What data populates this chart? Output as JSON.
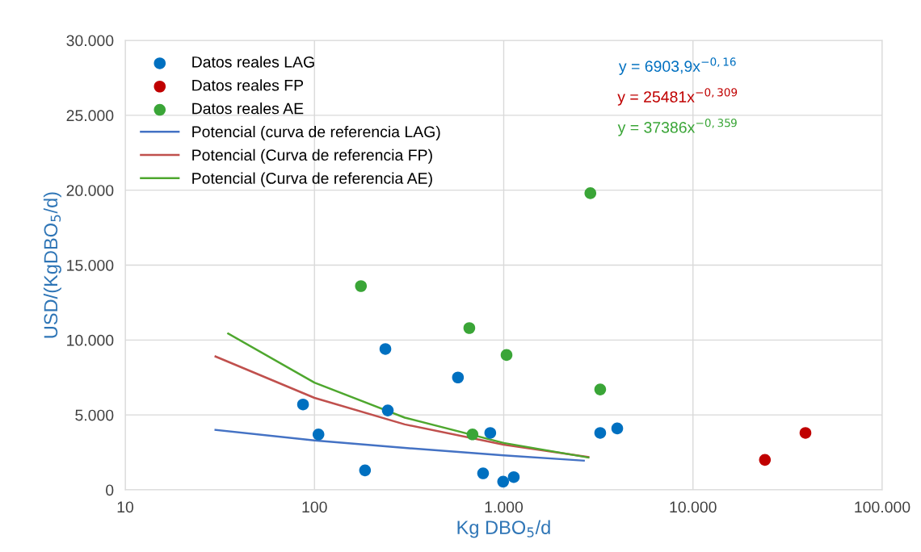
{
  "chart_data": {
    "type": "scatter",
    "xlabel": "Kg DBO$_{5}$/d",
    "ylabel": "USD/(KgDBO$_{5}$/d)",
    "log": "x",
    "grid": true,
    "legend": "top left",
    "xlim": [
      10,
      100000
    ],
    "xticks": [
      10,
      100,
      {
        "value": 1000,
        "label": "1.000"
      },
      {
        "value": 10000,
        "label": "10.000"
      },
      {
        "value": 100000,
        "label": "100.000"
      }
    ],
    "ylim": [
      0,
      30000
    ],
    "yticks": [
      0,
      {
        "value": 5000,
        "label": "5.000"
      },
      {
        "value": 10000,
        "label": "10.000"
      },
      {
        "value": 15000,
        "label": "15.000"
      },
      {
        "value": 20000,
        "label": "20.000"
      },
      {
        "value": 25000,
        "label": "25.000"
      },
      {
        "value": 30000,
        "label": "30.000"
      }
    ],
    "series": [
      {
        "name": "Datos reales LAG",
        "marker": "circle",
        "color": "#0070c0",
        "x": [
          87,
          105,
          185,
          237,
          244,
          573,
          778,
          849,
          993,
          1130,
          3235,
          3980
        ],
        "values": [
          5700,
          3700,
          1300,
          9400,
          5300,
          7500,
          1100,
          3800,
          550,
          850,
          3800,
          4100
        ]
      },
      {
        "name": "Datos reales FP",
        "marker": "circle",
        "color": "#c00000",
        "x": [
          24000,
          39300
        ],
        "values": [
          2000,
          3800
        ]
      },
      {
        "name": "Datos reales AE",
        "marker": "circle",
        "color": "#3aa537",
        "x": [
          176,
          658,
          684,
          1035,
          2870,
          3235
        ],
        "values": [
          13600,
          10800,
          3700,
          9000,
          19800,
          6700
        ]
      },
      {
        "name": "Potencial (curva de referencia LAG)",
        "type": "line",
        "color": "#4472c4",
        "x": [
          30,
          100,
          300,
          1000,
          2650
        ],
        "values": [
          4000,
          3300,
          2800,
          2300,
          1950
        ]
      },
      {
        "name": "Potencial (Curva de referencia FP)",
        "type": "line",
        "color": "#c0504d",
        "x": [
          30,
          100,
          300,
          1000,
          2800
        ],
        "values": [
          8900,
          6140,
          4370,
          3020,
          2190
        ]
      },
      {
        "name": "Potencial (Curva de referencia AE)",
        "type": "line",
        "color": "#4ea72e",
        "x": [
          35,
          100,
          300,
          1000,
          2800
        ],
        "values": [
          10430,
          7160,
          4820,
          3130,
          2160
        ]
      }
    ],
    "annotations": [
      "y = 6903,9x$^{−0,16}$",
      "y = 25481x$^{−0,309}$",
      "y = 37386x$^{−0,359}$"
    ]
  }
}
